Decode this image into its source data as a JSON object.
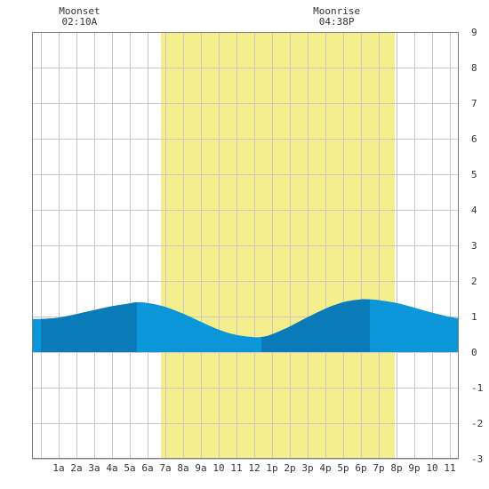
{
  "chart_data": {
    "type": "area",
    "title": "",
    "xlabel": "",
    "ylabel": "",
    "xlim": [
      -0.5,
      23.5
    ],
    "ylim": [
      -3,
      9
    ],
    "y_ticks": [
      "-3",
      "-2",
      "-1",
      "0",
      "1",
      "2",
      "3",
      "4",
      "5",
      "6",
      "7",
      "8",
      "9"
    ],
    "x_tick_labels": [
      "1a",
      "2a",
      "3a",
      "4a",
      "5a",
      "6a",
      "7a",
      "8a",
      "9a",
      "10",
      "11",
      "12",
      "1p",
      "2p",
      "3p",
      "4p",
      "5p",
      "6p",
      "7p",
      "8p",
      "9p",
      "10",
      "11"
    ],
    "grid": true,
    "daylight": {
      "start_hour": 6.75,
      "end_hour": 19.9,
      "color": "#f5ee8c"
    },
    "moon_events": [
      {
        "label": "Moonset",
        "time": "02:10A",
        "hour": 2.17
      },
      {
        "label": "Moonrise",
        "time": "04:38P",
        "hour": 16.63
      }
    ],
    "tide_colors": {
      "light": "#0a96d8",
      "dark": "#0a7ab8"
    },
    "dark_bands": [
      [
        0.0,
        5.4
      ],
      [
        12.4,
        18.5
      ]
    ],
    "series": [
      {
        "x": [
          -0.5,
          0.0,
          1.0,
          2.0,
          3.0,
          4.0,
          5.0,
          5.4,
          6.0,
          7.0,
          8.0,
          9.0,
          10.0,
          11.0,
          12.0,
          12.5,
          13.0,
          14.0,
          15.0,
          16.0,
          17.0,
          18.0,
          18.5,
          19.0,
          20.0,
          21.0,
          22.0,
          23.0,
          23.5
        ],
        "values": [
          0.93,
          0.93,
          0.97,
          1.07,
          1.18,
          1.29,
          1.37,
          1.4,
          1.38,
          1.27,
          1.08,
          0.85,
          0.63,
          0.48,
          0.42,
          0.43,
          0.5,
          0.72,
          0.98,
          1.22,
          1.4,
          1.48,
          1.48,
          1.46,
          1.38,
          1.25,
          1.11,
          0.99,
          0.95
        ]
      }
    ]
  }
}
